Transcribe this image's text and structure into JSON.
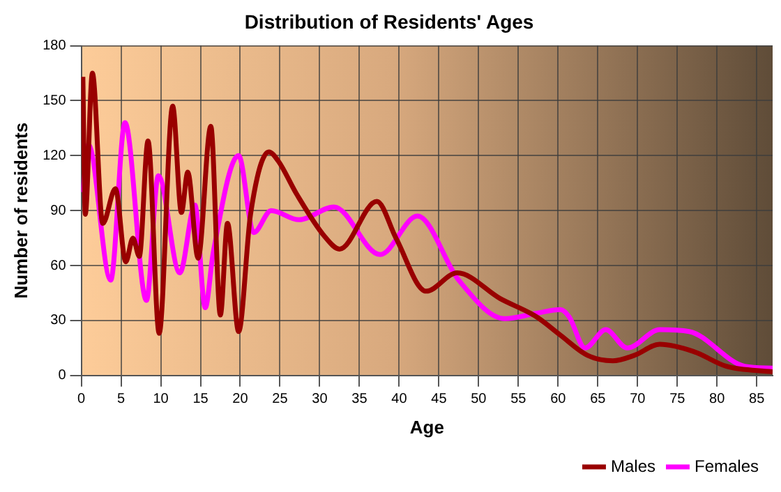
{
  "chart_data": {
    "type": "line",
    "title": "Distribution of Residents' Ages",
    "xlabel": "Age",
    "ylabel": "Number of residents",
    "xlim": [
      0,
      87
    ],
    "xticks": [
      0,
      5,
      10,
      15,
      20,
      25,
      30,
      35,
      40,
      45,
      50,
      55,
      60,
      65,
      70,
      75,
      80,
      85
    ],
    "ylim": [
      0,
      180
    ],
    "yticks": [
      0,
      30,
      60,
      90,
      120,
      150,
      180
    ],
    "grid": true,
    "legend": "bottom right",
    "marker": "none",
    "line_style": "solid",
    "series": [
      {
        "name": "Males",
        "color": "#990000",
        "x": [
          0.2,
          0.5,
          1.4,
          2.7,
          4.3,
          5.6,
          6.5,
          7.3,
          8.4,
          9.8,
          11.5,
          12.6,
          13.4,
          14.7,
          16.3,
          17.5,
          18.4,
          19.8,
          21.3,
          23.6,
          24.8,
          27.1,
          30.6,
          32.5,
          37.2,
          39.6,
          43.4,
          47.3,
          52.7,
          57.3,
          60.3,
          63.7,
          66.9,
          69.6,
          72.8,
          77.1,
          81.2,
          87
        ],
        "values": [
          163,
          88,
          165,
          83,
          102,
          62,
          75,
          65,
          128,
          23,
          147,
          89,
          111,
          64,
          136,
          33,
          83,
          24,
          88,
          122,
          117,
          99,
          76,
          69,
          95,
          75,
          46,
          56,
          42,
          32,
          22,
          11,
          8,
          11,
          17,
          13,
          5,
          2
        ]
      },
      {
        "name": "Females",
        "color": "#ff00ff",
        "x": [
          0.2,
          0.9,
          3.7,
          5.5,
          8.2,
          9.7,
          12.4,
          14.3,
          15.6,
          16.6,
          19.8,
          21.7,
          23.9,
          27.4,
          31.8,
          37.6,
          42.3,
          47.5,
          53.3,
          57.3,
          60.3,
          61.4,
          63.4,
          66,
          68.7,
          72.8,
          76.5,
          83.5,
          87
        ],
        "values": [
          100,
          126,
          52,
          138,
          41,
          109,
          56,
          93,
          37,
          67,
          120,
          78,
          90,
          85,
          92,
          66,
          87,
          52,
          31,
          34,
          36,
          32,
          15,
          25,
          15,
          25,
          24,
          5,
          4
        ]
      }
    ]
  }
}
